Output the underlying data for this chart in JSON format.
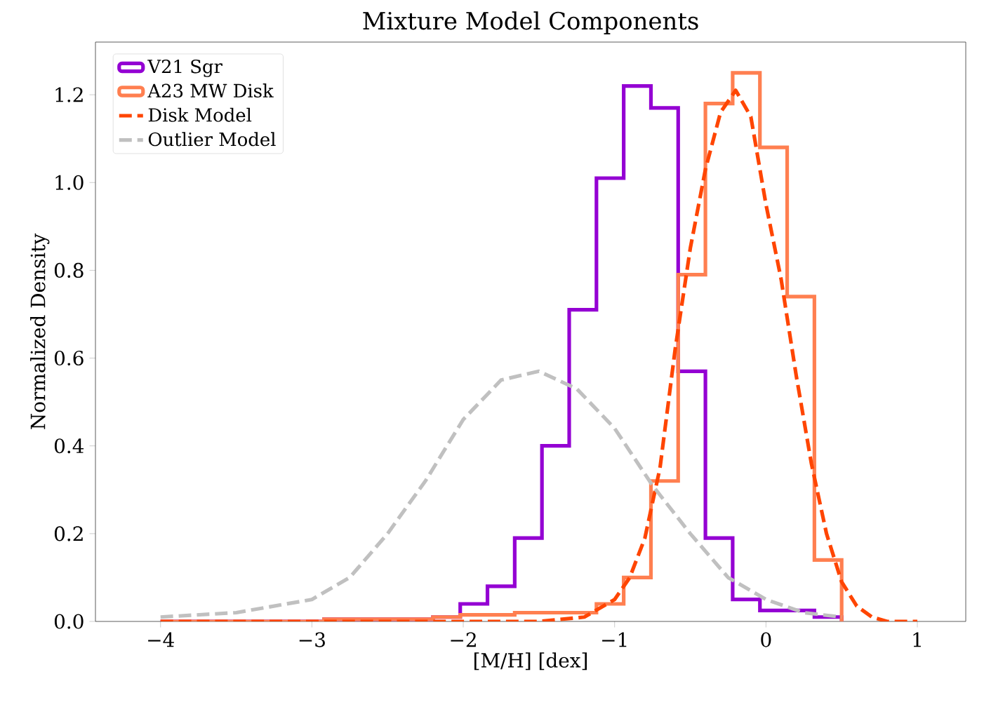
{
  "chart_data": {
    "type": "histogram",
    "title": "Mixture Model Components",
    "xlabel": "[M/H] [dex]",
    "ylabel": "Normalized Density",
    "bins": [
      -4,
      -3.82,
      -3.64,
      -3.46,
      -3.28,
      -3.1,
      -2.92,
      -2.74,
      -2.56,
      -2.38,
      -2.2,
      -2.02,
      -1.84,
      -1.66,
      -1.48,
      -1.3,
      -1.12,
      -0.94,
      -0.76,
      -0.58,
      -0.4,
      -0.22,
      -0.04,
      0.14,
      0.32,
      0.5
    ],
    "series": [
      {
        "name": "V21 Sgr",
        "color": "#9400d3",
        "values": [
          0,
          0,
          0,
          0,
          0,
          0,
          0.005,
          0.005,
          0.005,
          0.005,
          0.01,
          0.04,
          0.08,
          0.19,
          0.4,
          0.71,
          1.01,
          1.22,
          1.17,
          0.57,
          0.19,
          0.05,
          0.025,
          0.025,
          0.01
        ]
      },
      {
        "name": "A23 MW Disk",
        "color": "#ff7f50",
        "values": [
          0,
          0,
          0,
          0,
          0,
          0,
          0.005,
          0.005,
          0.005,
          0.005,
          0.01,
          0.015,
          0.015,
          0.02,
          0.02,
          0.02,
          0.04,
          0.1,
          0.32,
          0.79,
          1.18,
          1.25,
          1.08,
          0.74,
          0.14
        ]
      },
      {
        "name": "Disk Model",
        "type": "line",
        "line_style": "dashed",
        "color": "#ff4500",
        "x": [
          -4,
          -1.5,
          -1.2,
          -1.0,
          -0.9,
          -0.8,
          -0.7,
          -0.6,
          -0.5,
          -0.4,
          -0.3,
          -0.2,
          -0.1,
          0.0,
          0.1,
          0.2,
          0.3,
          0.4,
          0.5,
          0.6,
          0.7,
          0.8,
          1.0
        ],
        "values": [
          0,
          0,
          0.01,
          0.05,
          0.1,
          0.19,
          0.35,
          0.62,
          0.85,
          1.03,
          1.16,
          1.21,
          1.15,
          0.95,
          0.78,
          0.56,
          0.36,
          0.2,
          0.09,
          0.035,
          0.01,
          0,
          0
        ]
      },
      {
        "name": "Outlier Model",
        "type": "line",
        "line_style": "dashed",
        "color": "#c0c0c0",
        "x": [
          -4,
          -3.5,
          -3,
          -2.75,
          -2.5,
          -2.25,
          -2,
          -1.75,
          -1.5,
          -1.25,
          -1,
          -0.75,
          -0.5,
          -0.25,
          0,
          0.25,
          0.5
        ],
        "values": [
          0.01,
          0.02,
          0.05,
          0.1,
          0.2,
          0.32,
          0.46,
          0.55,
          0.57,
          0.53,
          0.44,
          0.31,
          0.2,
          0.1,
          0.05,
          0.02,
          0.01
        ]
      }
    ],
    "xlim": [
      -4.43,
      1.32
    ],
    "ylim": [
      0,
      1.32
    ],
    "xticks": [
      {
        "value": -4,
        "label": "−4"
      },
      {
        "value": -3,
        "label": "−3"
      },
      {
        "value": -2,
        "label": "−2"
      },
      {
        "value": -1,
        "label": "−1"
      },
      0,
      1
    ],
    "yticks": [
      {
        "value": 0,
        "label": "0.0"
      },
      0.2,
      0.4,
      0.6,
      0.8,
      {
        "value": 1,
        "label": "1.0"
      },
      1.2
    ],
    "grid": false,
    "legend": "top left"
  }
}
